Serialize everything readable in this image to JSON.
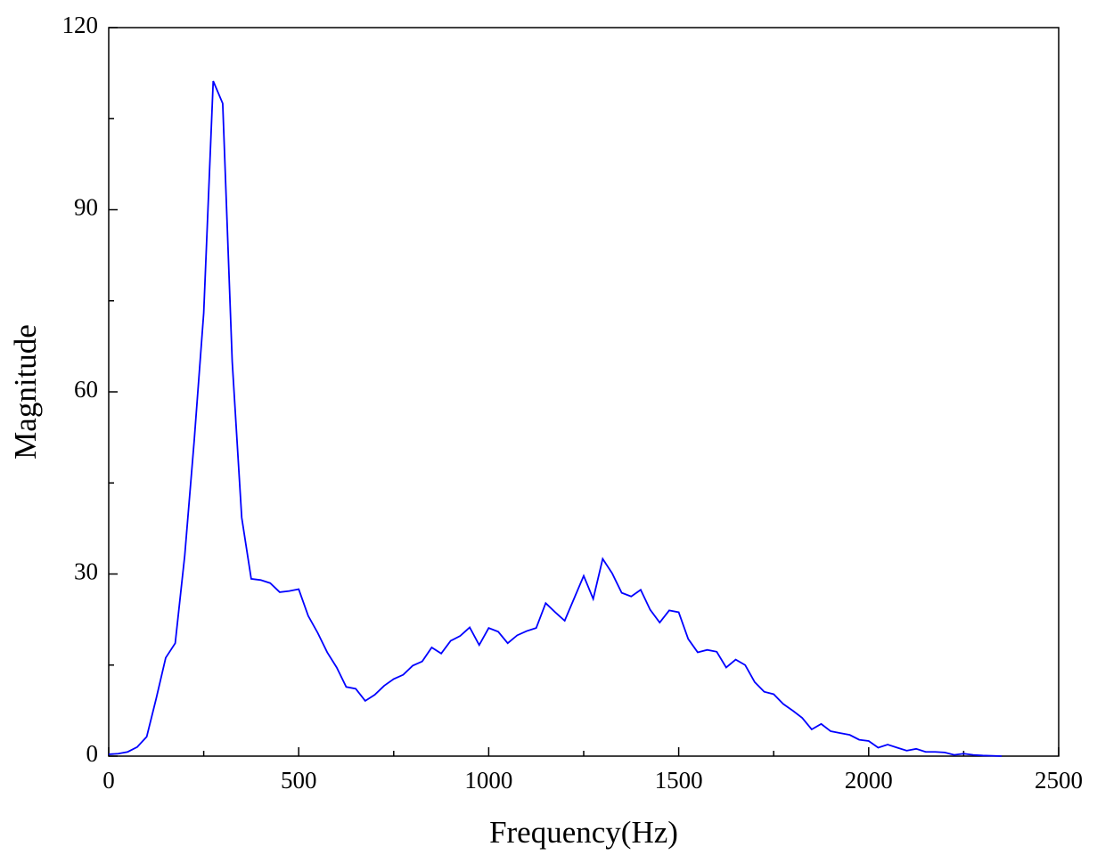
{
  "chart_data": {
    "type": "line",
    "xlabel": "Frequency(Hz)",
    "ylabel": "Magnitude",
    "xlim": [
      0,
      2500
    ],
    "xticks": [
      0,
      500,
      1000,
      1500,
      2000,
      2500
    ],
    "ylim": [
      0,
      120
    ],
    "yticks": [
      0,
      30,
      60,
      90,
      120
    ],
    "grid": false,
    "series": [
      {
        "color": "#0000ff",
        "x": [
          0,
          25,
          50,
          75,
          100,
          125,
          150,
          175,
          200,
          225,
          250,
          275,
          300,
          325,
          350,
          375,
          400,
          425,
          450,
          475,
          500,
          525,
          550,
          575,
          600,
          625,
          650,
          675,
          700,
          725,
          750,
          775,
          800,
          825,
          850,
          875,
          900,
          925,
          950,
          975,
          1000,
          1025,
          1050,
          1075,
          1100,
          1125,
          1150,
          1175,
          1200,
          1225,
          1250,
          1275,
          1300,
          1325,
          1350,
          1375,
          1400,
          1425,
          1450,
          1475,
          1500,
          1525,
          1550,
          1575,
          1600,
          1625,
          1650,
          1675,
          1700,
          1725,
          1750,
          1775,
          1800,
          1825,
          1850,
          1875,
          1900,
          1925,
          1950,
          1975,
          2000,
          2025,
          2050,
          2075,
          2100,
          2125,
          2150,
          2175,
          2200,
          2225,
          2250,
          2275,
          2300,
          2325,
          2350
        ],
        "values": [
          0.3,
          0.4,
          0.7,
          1.5,
          3.2,
          9.5,
          16.2,
          18.6,
          33,
          52,
          73,
          111.2,
          107.5,
          65,
          39.3,
          29.2,
          29,
          28.5,
          27,
          27.2,
          27.5,
          23.1,
          20.3,
          17.1,
          14.6,
          11.4,
          11.1,
          9.1,
          10.1,
          11.6,
          12.7,
          13.4,
          14.9,
          15.6,
          17.9,
          16.9,
          19,
          19.8,
          21.2,
          18.3,
          21.1,
          20.5,
          18.6,
          19.9,
          20.6,
          21.1,
          25.2,
          23.7,
          22.3,
          26,
          29.7,
          25.9,
          32.5,
          30.1,
          26.9,
          26.3,
          27.4,
          24.1,
          22,
          24,
          23.7,
          19.3,
          17.1,
          17.5,
          17.2,
          14.6,
          15.9,
          15,
          12.2,
          10.6,
          10.2,
          8.6,
          7.5,
          6.3,
          4.4,
          5.3,
          4.1,
          3.8,
          3.5,
          2.7,
          2.5,
          1.4,
          1.9,
          1.4,
          0.9,
          1.2,
          0.7,
          0.7,
          0.6,
          0.2,
          0.4,
          0.2,
          0.1,
          0.05,
          0
        ]
      }
    ]
  }
}
